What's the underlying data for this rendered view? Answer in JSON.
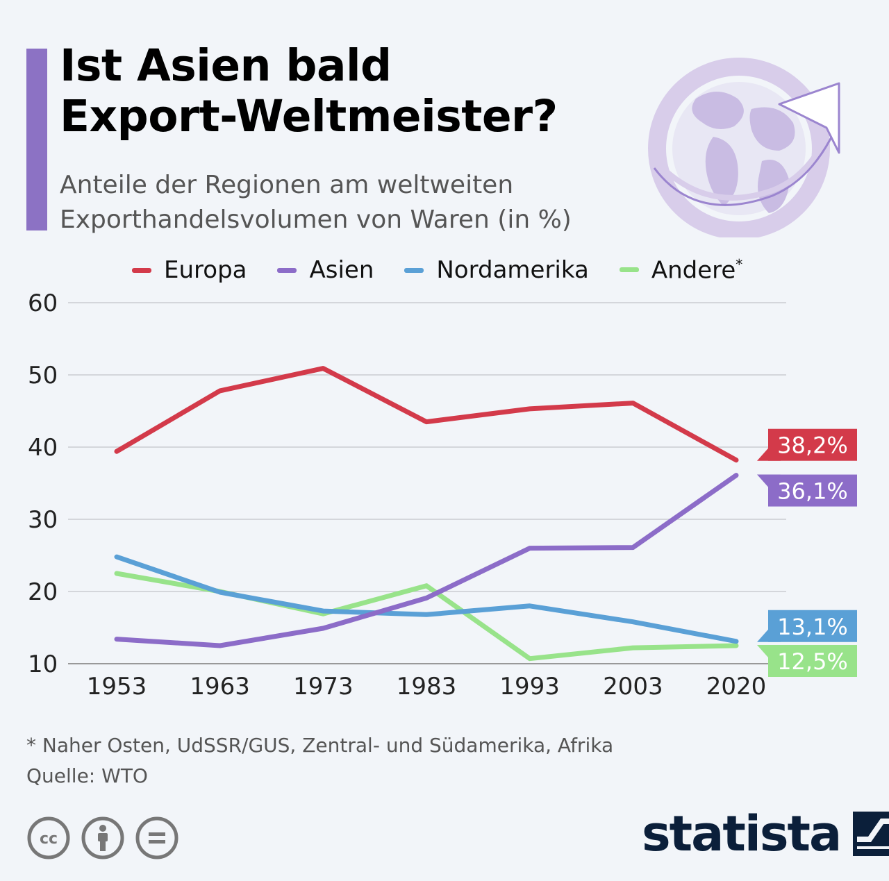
{
  "header": {
    "title_line1": "Ist Asien bald",
    "title_line2": "Export-Weltmeister?",
    "subtitle_line1": "Anteile der Regionen am weltweiten",
    "subtitle_line2": "Exporthandelsvolumen von Waren (in %)"
  },
  "footer": {
    "footnote": "* Naher Osten, UdSSR/GUS, Zentral- und Südamerika, Afrika",
    "source": "Quelle: WTO",
    "brand": "statista"
  },
  "colors": {
    "accent": "#8c72c4",
    "europa": "#d33a4a",
    "asien": "#8c6cc8",
    "nordamerika": "#5aa0d6",
    "andere": "#98e38a"
  },
  "icons": [
    "globe-arrow-icon",
    "cc-icon",
    "by-icon",
    "nd-icon",
    "statista-logo-icon"
  ],
  "chart_data": {
    "type": "line",
    "title": "Ist Asien bald Export-Weltmeister?",
    "subtitle": "Anteile der Regionen am weltweiten Exporthandelsvolumen von Waren (in %)",
    "x": [
      "1953",
      "1963",
      "1973",
      "1983",
      "1993",
      "2003",
      "2020"
    ],
    "ylim": [
      10,
      60
    ],
    "yticks": [
      10,
      20,
      30,
      40,
      50,
      60
    ],
    "grid": true,
    "legend_position": "top",
    "series": [
      {
        "name": "Europa",
        "color": "#d33a4a",
        "values": [
          39.4,
          47.8,
          50.9,
          43.5,
          45.3,
          46.1,
          38.2
        ],
        "end_label": "38,2%"
      },
      {
        "name": "Asien",
        "color": "#8c6cc8",
        "values": [
          13.4,
          12.5,
          14.9,
          19.1,
          26.0,
          26.1,
          36.1
        ],
        "end_label": "36,1%"
      },
      {
        "name": "Nordamerika",
        "color": "#5aa0d6",
        "values": [
          24.8,
          19.9,
          17.3,
          16.8,
          18.0,
          15.8,
          13.1
        ],
        "end_label": "13,1%"
      },
      {
        "name": "Andere",
        "name_suffix": "*",
        "color": "#98e38a",
        "values": [
          22.5,
          20.0,
          16.9,
          20.8,
          10.7,
          12.2,
          12.5
        ],
        "end_label": "12,5%"
      }
    ]
  }
}
